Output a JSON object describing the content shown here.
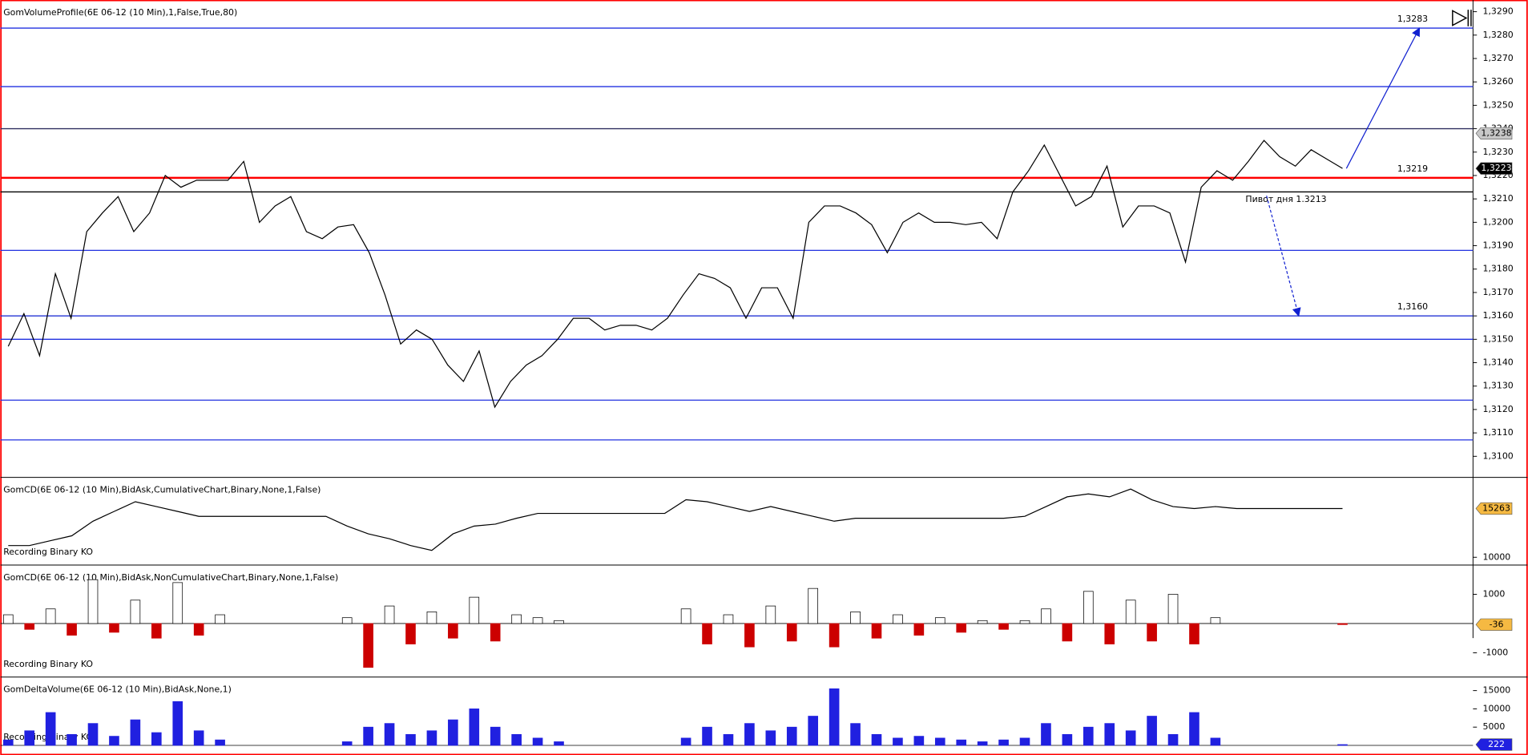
{
  "chart_data": [
    {
      "type": "line",
      "title": "GomVolumeProfile(6E 06-12 (10 Min),1,False,True,80)",
      "color": "#000000",
      "values": [
        1.3147,
        1.3161,
        1.3143,
        1.3178,
        1.3159,
        1.3196,
        1.3204,
        1.3211,
        1.3196,
        1.3204,
        1.322,
        1.3215,
        1.3218,
        1.3218,
        1.3218,
        1.3226,
        1.32,
        1.3207,
        1.3211,
        1.3196,
        1.3193,
        1.3198,
        1.3199,
        1.3187,
        1.3169,
        1.3148,
        1.3154,
        1.315,
        1.3139,
        1.3132,
        1.3145,
        1.3121,
        1.3132,
        1.3139,
        1.3143,
        1.315,
        1.3159,
        1.3159,
        1.3154,
        1.3156,
        1.3156,
        1.3154,
        1.3159,
        1.3169,
        1.3178,
        1.3176,
        1.3172,
        1.3159,
        1.3172,
        1.3172,
        1.3159,
        1.32,
        1.3207,
        1.3207,
        1.3204,
        1.3199,
        1.3187,
        1.32,
        1.3204,
        1.32,
        1.32,
        1.3199,
        1.32,
        1.3193,
        1.3213,
        1.3222,
        1.3233,
        1.322,
        1.3207,
        1.3211,
        1.3224,
        1.3198,
        1.3207,
        1.3207,
        1.3204,
        1.3183,
        1.3215,
        1.3222,
        1.3218,
        1.3226,
        1.3235,
        1.3228,
        1.3224,
        1.3231,
        1.3227,
        1.3223
      ],
      "ylim": [
        1.3091,
        1.3295
      ],
      "yticks": [
        {
          "value": 1.31,
          "label": "1,3100"
        },
        {
          "value": 1.311,
          "label": "1,3110"
        },
        {
          "value": 1.312,
          "label": "1,3120"
        },
        {
          "value": 1.313,
          "label": "1,3130"
        },
        {
          "value": 1.314,
          "label": "1,3140"
        },
        {
          "value": 1.315,
          "label": "1,3150"
        },
        {
          "value": 1.316,
          "label": "1,3160"
        },
        {
          "value": 1.317,
          "label": "1,3170"
        },
        {
          "value": 1.318,
          "label": "1,3180"
        },
        {
          "value": 1.319,
          "label": "1,3190"
        },
        {
          "value": 1.32,
          "label": "1,3200"
        },
        {
          "value": 1.321,
          "label": "1,3210"
        },
        {
          "value": 1.322,
          "label": "1,3220"
        },
        {
          "value": 1.323,
          "label": "1,3230"
        },
        {
          "value": 1.324,
          "label": "1,3240"
        },
        {
          "value": 1.325,
          "label": "1,3250"
        },
        {
          "value": 1.326,
          "label": "1,3260"
        },
        {
          "value": 1.327,
          "label": "1,3270"
        },
        {
          "value": 1.328,
          "label": "1,3280"
        },
        {
          "value": 1.329,
          "label": "1,3290"
        }
      ],
      "levels": [
        {
          "value": 1.3283,
          "label": "1,3283",
          "color": "#2030e0"
        },
        {
          "value": 1.3258,
          "color": "#2030e0"
        },
        {
          "value": 1.324,
          "color": "#303060"
        },
        {
          "value": 1.3219,
          "label": "1,3219",
          "color": "#ff0000"
        },
        {
          "value": 1.3213,
          "label": "Пивот дня 1.3213",
          "color": "#000000"
        },
        {
          "value": 1.3188,
          "color": "#2030e0"
        },
        {
          "value": 1.316,
          "label": "1,3160",
          "color": "#1020d0"
        },
        {
          "value": 1.315,
          "color": "#2030e0"
        },
        {
          "value": 1.3124,
          "color": "#2030e0"
        },
        {
          "value": 1.3107,
          "color": "#2030e0"
        }
      ],
      "badges": [
        {
          "value": 1.3238,
          "label": "1,3238",
          "color": "#c8c8c8"
        },
        {
          "value": 1.3223,
          "label": "1,3223",
          "color": "#000000"
        }
      ]
    },
    {
      "type": "line",
      "title": "GomCD(6E 06-12 (10 Min),BidAsk,CumulativeChart,Binary,None,1,False)",
      "watermark": "Recording Binary KO",
      "color": "#000000",
      "values": [
        11264,
        11264,
        11790,
        12317,
        13896,
        14949,
        16002,
        15476,
        14949,
        14423,
        14423,
        14423,
        14423,
        14423,
        14423,
        14423,
        13370,
        12527,
        12000,
        11264,
        10737,
        12527,
        13370,
        13580,
        14212,
        14739,
        14739,
        14739,
        14739,
        14739,
        14739,
        14739,
        16213,
        16002,
        15476,
        14949,
        15476,
        14949,
        14423,
        13896,
        14212,
        14212,
        14212,
        14212,
        14212,
        14212,
        14212,
        14212,
        14423,
        15476,
        16529,
        16845,
        16529,
        17371,
        16213,
        15476,
        15265,
        15476,
        15263,
        15263,
        15263,
        15263,
        15263,
        15263
      ],
      "ylim": [
        9160,
        18630
      ],
      "yticks": [
        10000
      ],
      "badges": [
        {
          "value": 15263,
          "color": "#f5b942"
        }
      ]
    },
    {
      "type": "bar",
      "title": "GomCD(6E 06-12 (10 Min),BidAsk,NonCumulativeChart,Binary,None,1,False)",
      "watermark": "Recording Binary KO",
      "color": "#ffffff",
      "negative_color": "#cc0000",
      "values": [
        300,
        -200,
        500,
        -400,
        1500,
        -300,
        800,
        -500,
        1400,
        -400,
        300,
        null,
        null,
        null,
        null,
        null,
        200,
        -1500,
        600,
        -700,
        400,
        -500,
        900,
        -600,
        300,
        200,
        100,
        null,
        null,
        null,
        null,
        null,
        500,
        -700,
        300,
        -800,
        600,
        -600,
        1200,
        -800,
        400,
        -500,
        300,
        -400,
        200,
        -300,
        100,
        -200,
        100,
        500,
        -600,
        1100,
        -700,
        800,
        -600,
        1000,
        -700,
        200,
        null,
        null,
        null,
        null,
        null,
        -36
      ],
      "ylim": [
        -1830,
        2000
      ],
      "yticks": [
        1000,
        -1000
      ],
      "badges": [
        {
          "value": -36,
          "color": "#f5b942"
        }
      ]
    },
    {
      "type": "bar",
      "title": "GomDeltaVolume(6E 06-12 (10 Min),BidAsk,None,1)",
      "watermark": "Recording Binary KO",
      "color": "#2020e0",
      "values": [
        1500,
        4000,
        9000,
        3000,
        6000,
        2500,
        7000,
        3500,
        12000,
        4000,
        1500,
        null,
        null,
        null,
        null,
        null,
        1000,
        5000,
        6000,
        3000,
        4000,
        7000,
        10000,
        5000,
        3000,
        2000,
        1000,
        null,
        null,
        null,
        null,
        null,
        2000,
        5000,
        3000,
        6000,
        4000,
        5000,
        8000,
        15500,
        6000,
        3000,
        2000,
        2500,
        2000,
        1500,
        1000,
        1500,
        2000,
        6000,
        3000,
        5000,
        6000,
        4000,
        8000,
        3000,
        9000,
        2000,
        null,
        null,
        null,
        null,
        null,
        222
      ],
      "ylim": [
        -1300,
        18700
      ],
      "yticks": [
        15000,
        10000,
        5000
      ],
      "badges": [
        {
          "value": 222,
          "color": "#2020e0"
        }
      ]
    }
  ]
}
